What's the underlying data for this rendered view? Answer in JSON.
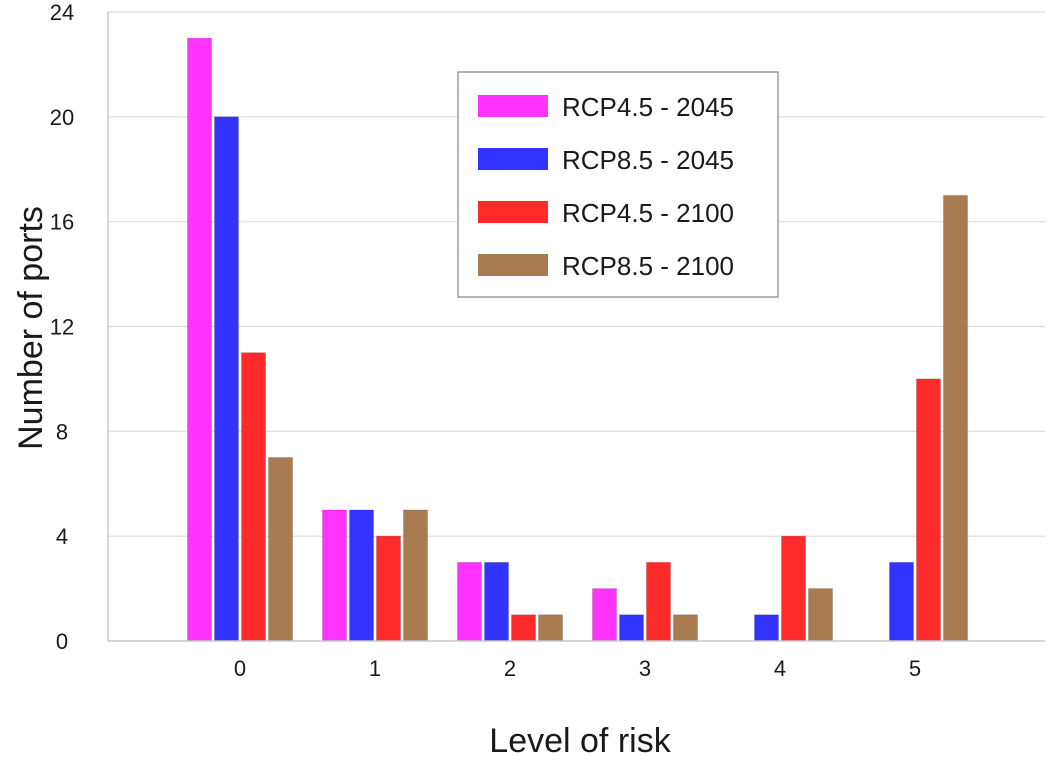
{
  "chart_data": {
    "type": "bar",
    "title": "",
    "xlabel": "Level of risk",
    "ylabel": "Number of ports",
    "categories": [
      "0",
      "1",
      "2",
      "3",
      "4",
      "5"
    ],
    "ylim": [
      0,
      24
    ],
    "yticks": [
      "0",
      "4",
      "8",
      "12",
      "16",
      "20",
      "24"
    ],
    "grid": true,
    "legend_position": "top-center",
    "series": [
      {
        "name": "RCP4.5 - 2045",
        "color": "#ff33ff",
        "values": [
          23,
          5,
          3,
          2,
          0,
          0
        ]
      },
      {
        "name": "RCP8.5 - 2045",
        "color": "#3333ff",
        "values": [
          20,
          5,
          3,
          1,
          1,
          3
        ]
      },
      {
        "name": "RCP4.5 - 2100",
        "color": "#ff2b2b",
        "values": [
          11,
          4,
          1,
          3,
          4,
          10
        ]
      },
      {
        "name": "RCP8.5 - 2100",
        "color": "#a87c50",
        "values": [
          7,
          5,
          1,
          1,
          2,
          17
        ]
      }
    ]
  }
}
